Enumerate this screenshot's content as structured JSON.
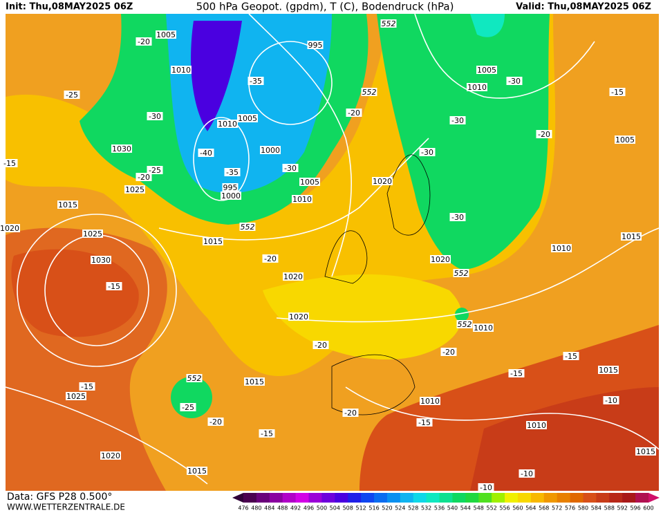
{
  "header": {
    "init": "Init: Thu,08MAY2025 06Z",
    "title": "500 hPa Geopot. (gpdm), T (C), Bodendruck (hPa)",
    "valid": "Valid: Thu,08MAY2025 06Z"
  },
  "footer": {
    "data": "Data: GFS P28 0.500°",
    "site": "WWW.WETTERZENTRALE.DE"
  },
  "colorbar": {
    "labels": [
      476,
      480,
      484,
      488,
      492,
      496,
      500,
      504,
      508,
      512,
      516,
      520,
      524,
      528,
      532,
      536,
      540,
      544,
      548,
      552,
      556,
      560,
      564,
      568,
      572,
      576,
      580,
      584,
      588,
      592,
      596,
      600
    ],
    "colors": [
      "#4b0050",
      "#6a007a",
      "#8a00a0",
      "#b000c8",
      "#d200e6",
      "#9a00d8",
      "#6e00dc",
      "#4a00e0",
      "#2020e8",
      "#1046f0",
      "#0a6cf0",
      "#0a90f0",
      "#10b4f0",
      "#10d8e8",
      "#10e8c0",
      "#10e090",
      "#10d860",
      "#20d840",
      "#50e020",
      "#a0f000",
      "#f0f000",
      "#f8d800",
      "#f8b800",
      "#f09800",
      "#e88000",
      "#e06800",
      "#d85018",
      "#c83c18",
      "#b82818",
      "#a81818",
      "#b01050"
    ]
  },
  "map": {
    "labels": [
      "1005",
      "-20",
      "1010",
      "995",
      "-25",
      "-35",
      "1030",
      "-30",
      "1010",
      "1005",
      "1000",
      "-40",
      "-25",
      "-20",
      "1025",
      "995",
      "1000",
      "-35",
      "-30",
      "1005",
      "1010",
      "1015",
      "552",
      "1015",
      "1025",
      "1030",
      "-15",
      "-20",
      "1020",
      "1020",
      "-20",
      "552",
      "-25",
      "-20",
      "1015",
      "-15",
      "1025",
      "-15",
      "1020",
      "1015",
      "-20",
      "-20",
      "1010",
      "-15",
      "-15",
      "1010",
      "1015",
      "-15",
      "-10",
      "1015",
      "-10",
      "-10",
      "1010",
      "552",
      "552",
      "1020",
      "-20",
      "552",
      "1020",
      "552",
      "1005",
      "1010",
      "-30",
      "-30",
      "-30",
      "-20",
      "-30",
      "1010",
      "1015",
      "1005",
      "-15",
      "-25",
      "-15",
      "1020"
    ]
  }
}
